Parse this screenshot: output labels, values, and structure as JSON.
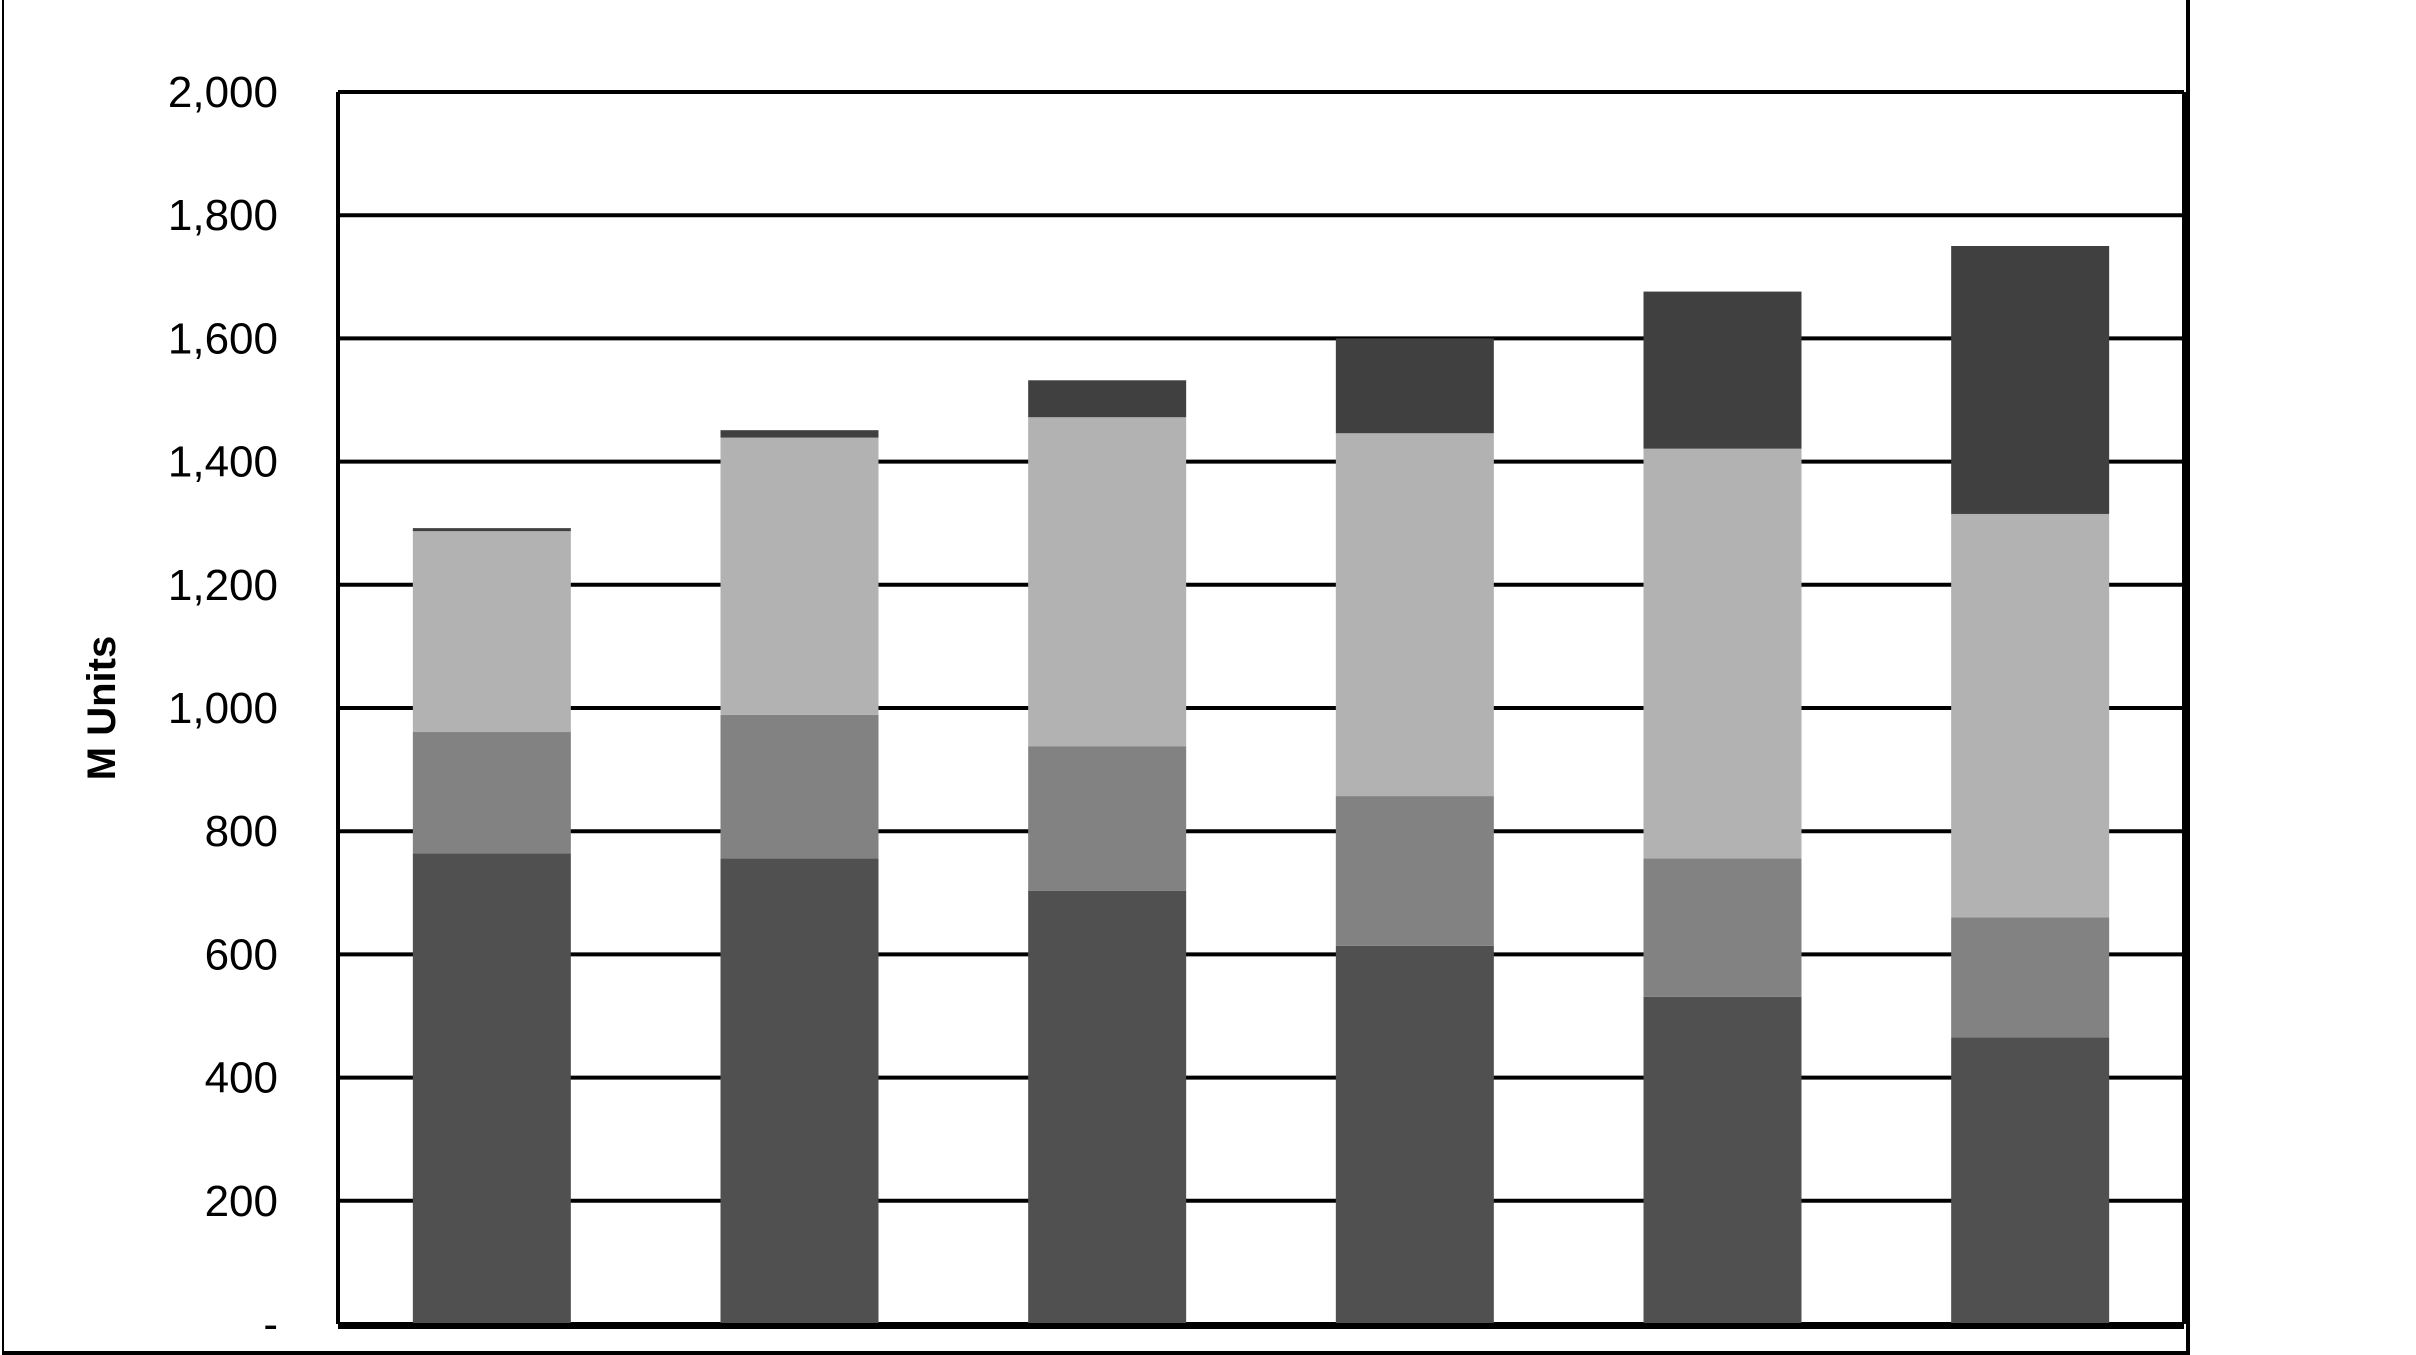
{
  "chart_data": {
    "type": "bar",
    "stacked": true,
    "title": "",
    "xlabel": "",
    "ylabel": "M Units",
    "ylim": [
      0,
      2000
    ],
    "yticks": [
      0,
      200,
      400,
      600,
      800,
      1000,
      1200,
      1400,
      1600,
      1800,
      2000
    ],
    "ytick_labels": [
      "-",
      "200",
      "400",
      "600",
      "800",
      "1,000",
      "1,200",
      "1,400",
      "1,600",
      "1,800",
      "2,000"
    ],
    "grid": true,
    "legend": "none",
    "categories": [
      "",
      "",
      "",
      "",
      "",
      ""
    ],
    "series": [
      {
        "values": [
          764,
          756,
          703,
          614,
          531,
          465
        ],
        "color": "#505050"
      },
      {
        "values": [
          197,
          233,
          235,
          243,
          225,
          195
        ],
        "color": "#828282"
      },
      {
        "values": [
          326,
          450,
          534,
          589,
          665,
          655
        ],
        "color": "#b2b2b2"
      },
      {
        "values": [
          5,
          12,
          60,
          154,
          255,
          435
        ],
        "color": "#404040"
      }
    ]
  }
}
